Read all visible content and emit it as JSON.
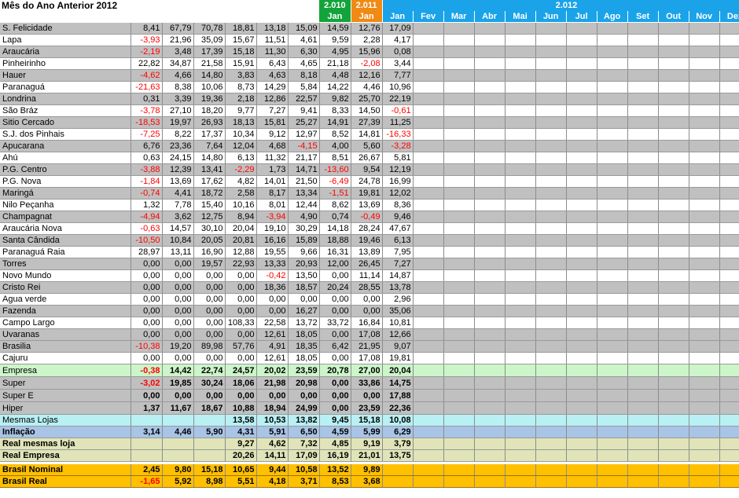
{
  "title": "Mês do Ano Anterior 2012",
  "year_headers": {
    "y2010": "2.010",
    "y2011": "2.011",
    "y2012": "2.012"
  },
  "month_headers": {
    "m2010": "Jan",
    "m2011": "Jan",
    "m2012": [
      "Jan",
      "Fev",
      "Mar",
      "Abr",
      "Mai",
      "Jun",
      "Jul",
      "Ago",
      "Set",
      "Out",
      "Nov",
      "Dez"
    ]
  },
  "rows": [
    {
      "label": "S. Felicidade",
      "style": "rg",
      "values": [
        "8,41",
        "67,79",
        "70,78",
        "18,81",
        "13,18",
        "15,09",
        "14,59",
        "12,76",
        "17,09"
      ]
    },
    {
      "label": "Lapa",
      "style": "rw",
      "values": [
        "-3,93",
        "21,96",
        "35,09",
        "15,67",
        "11,51",
        "4,61",
        "9,59",
        "2,28",
        "4,17"
      ]
    },
    {
      "label": "Araucária",
      "style": "rg",
      "values": [
        "-2,19",
        "3,48",
        "17,39",
        "15,18",
        "11,30",
        "6,30",
        "4,95",
        "15,96",
        "0,08"
      ]
    },
    {
      "label": "Pinheirinho",
      "style": "rw",
      "values": [
        "22,82",
        "34,87",
        "21,58",
        "15,91",
        "6,43",
        "4,65",
        "21,18",
        "-2,08",
        "3,44"
      ]
    },
    {
      "label": "Hauer",
      "style": "rg",
      "values": [
        "-4,62",
        "4,66",
        "14,80",
        "3,83",
        "4,63",
        "8,18",
        "4,48",
        "12,16",
        "7,77"
      ]
    },
    {
      "label": "Paranaguá",
      "style": "rw",
      "values": [
        "-21,63",
        "8,38",
        "10,06",
        "8,73",
        "14,29",
        "5,84",
        "14,22",
        "4,46",
        "10,96"
      ]
    },
    {
      "label": "Londrina",
      "style": "rg",
      "values": [
        "0,31",
        "3,39",
        "19,36",
        "2,18",
        "12,86",
        "22,57",
        "9,82",
        "25,70",
        "22,19"
      ]
    },
    {
      "label": "São Bráz",
      "style": "rw",
      "values": [
        "-3,78",
        "27,10",
        "18,20",
        "9,77",
        "7,27",
        "9,41",
        "8,33",
        "14,50",
        "-0,61"
      ]
    },
    {
      "label": "Sitio Cercado",
      "style": "rg",
      "values": [
        "-18,53",
        "19,97",
        "26,93",
        "18,13",
        "15,81",
        "25,27",
        "14,91",
        "27,39",
        "11,25"
      ]
    },
    {
      "label": "S.J. dos Pinhais",
      "style": "rw",
      "values": [
        "-7,25",
        "8,22",
        "17,37",
        "10,34",
        "9,12",
        "12,97",
        "8,52",
        "14,81",
        "-16,33"
      ]
    },
    {
      "label": "Apucarana",
      "style": "rg",
      "values": [
        "6,76",
        "23,36",
        "7,64",
        "12,04",
        "4,68",
        "-4,15",
        "4,00",
        "5,60",
        "-3,28"
      ]
    },
    {
      "label": "Ahú",
      "style": "rw",
      "values": [
        "0,63",
        "24,15",
        "14,80",
        "6,13",
        "11,32",
        "21,17",
        "8,51",
        "26,67",
        "5,81"
      ]
    },
    {
      "label": "P.G. Centro",
      "style": "rg",
      "values": [
        "-3,88",
        "12,39",
        "13,41",
        "-2,29",
        "1,73",
        "14,71",
        "-13,60",
        "9,54",
        "12,19"
      ]
    },
    {
      "label": "P.G. Nova",
      "style": "rw",
      "values": [
        "-1,84",
        "13,69",
        "17,62",
        "4,82",
        "14,01",
        "21,50",
        "-6,49",
        "24,78",
        "16,99"
      ]
    },
    {
      "label": "Maringá",
      "style": "rg",
      "values": [
        "-0,74",
        "4,41",
        "18,72",
        "2,58",
        "8,17",
        "13,34",
        "-1,51",
        "19,81",
        "12,02"
      ]
    },
    {
      "label": "Nilo Peçanha",
      "style": "rw",
      "values": [
        "1,32",
        "7,78",
        "15,40",
        "10,16",
        "8,01",
        "12,44",
        "8,62",
        "13,69",
        "8,36"
      ]
    },
    {
      "label": "Champagnat",
      "style": "rg",
      "values": [
        "-4,94",
        "3,62",
        "12,75",
        "8,94",
        "-3,94",
        "4,90",
        "0,74",
        "-0,49",
        "9,46"
      ]
    },
    {
      "label": "Araucária Nova",
      "style": "rw",
      "values": [
        "-0,63",
        "14,57",
        "30,10",
        "20,04",
        "19,10",
        "30,29",
        "14,18",
        "28,24",
        "47,67"
      ]
    },
    {
      "label": "Santa Cândida",
      "style": "rg",
      "values": [
        "-10,50",
        "10,84",
        "20,05",
        "20,81",
        "16,16",
        "15,89",
        "18,88",
        "19,46",
        "6,13"
      ]
    },
    {
      "label": "Paranaguá Raia",
      "style": "rw",
      "values": [
        "28,97",
        "13,11",
        "16,90",
        "12,88",
        "19,55",
        "9,66",
        "16,31",
        "13,89",
        "7,95"
      ]
    },
    {
      "label": "Torres",
      "style": "rg",
      "values": [
        "0,00",
        "0,00",
        "19,57",
        "22,93",
        "13,33",
        "20,93",
        "12,00",
        "26,45",
        "7,27"
      ]
    },
    {
      "label": "Novo Mundo",
      "style": "rw",
      "values": [
        "0,00",
        "0,00",
        "0,00",
        "0,00",
        "-0,42",
        "13,50",
        "0,00",
        "11,14",
        "14,87"
      ]
    },
    {
      "label": "Cristo Rei",
      "style": "rg",
      "values": [
        "0,00",
        "0,00",
        "0,00",
        "0,00",
        "18,36",
        "18,57",
        "20,24",
        "28,55",
        "13,78"
      ]
    },
    {
      "label": "Agua verde",
      "style": "rw",
      "values": [
        "0,00",
        "0,00",
        "0,00",
        "0,00",
        "0,00",
        "0,00",
        "0,00",
        "0,00",
        "2,96"
      ]
    },
    {
      "label": "Fazenda",
      "style": "rg",
      "values": [
        "0,00",
        "0,00",
        "0,00",
        "0,00",
        "0,00",
        "16,27",
        "0,00",
        "0,00",
        "35,06"
      ]
    },
    {
      "label": "Campo Largo",
      "style": "rw",
      "values": [
        "0,00",
        "0,00",
        "0,00",
        "108,33",
        "22,58",
        "13,72",
        "33,72",
        "16,84",
        "10,81"
      ]
    },
    {
      "label": "Uvaranas",
      "style": "rg",
      "values": [
        "0,00",
        "0,00",
        "0,00",
        "0,00",
        "12,61",
        "18,05",
        "0,00",
        "17,08",
        "12,66"
      ]
    },
    {
      "label": "Brasilia",
      "style": "rg",
      "values": [
        "-10,38",
        "19,20",
        "89,98",
        "57,76",
        "4,91",
        "18,35",
        "6,42",
        "21,95",
        "9,07"
      ]
    },
    {
      "label": "Cajuru",
      "style": "rw",
      "values": [
        "0,00",
        "0,00",
        "0,00",
        "0,00",
        "12,61",
        "18,05",
        "0,00",
        "17,08",
        "19,81"
      ]
    }
  ],
  "summary": [
    {
      "label": "Empresa",
      "style": "empresa",
      "values": [
        "-0,38",
        "14,42",
        "22,74",
        "24,57",
        "20,02",
        "23,59",
        "20,78",
        "27,00",
        "20,04"
      ]
    },
    {
      "label": "Super",
      "style": "grp",
      "values": [
        "-3,02",
        "19,85",
        "30,24",
        "18,06",
        "21,98",
        "20,98",
        "0,00",
        "33,86",
        "14,75"
      ]
    },
    {
      "label": "Super E",
      "style": "grp",
      "values": [
        "0,00",
        "0,00",
        "0,00",
        "0,00",
        "0,00",
        "0,00",
        "0,00",
        "0,00",
        "17,88"
      ]
    },
    {
      "label": "Hiper",
      "style": "grp",
      "values": [
        "1,37",
        "11,67",
        "18,67",
        "10,88",
        "18,94",
        "24,99",
        "0,00",
        "23,59",
        "22,36"
      ]
    },
    {
      "label": "Mesmas Lojas",
      "style": "mesmas",
      "values": [
        "",
        "",
        "",
        "13,58",
        "10,53",
        "13,82",
        "9,45",
        "15,18",
        "10,08"
      ]
    },
    {
      "label": "Inflação",
      "style": "infl",
      "values": [
        "3,14",
        "4,46",
        "5,90",
        "4,31",
        "5,91",
        "6,50",
        "4,59",
        "5,99",
        "6,29"
      ]
    },
    {
      "label": "Real mesmas loja",
      "style": "real",
      "values": [
        "",
        "",
        "",
        "9,27",
        "4,62",
        "7,32",
        "4,85",
        "9,19",
        "3,79"
      ]
    },
    {
      "label": "Real Empresa",
      "style": "real",
      "values": [
        "",
        "",
        "",
        "20,26",
        "14,11",
        "17,09",
        "16,19",
        "21,01",
        "13,75"
      ]
    }
  ],
  "brasil": [
    {
      "label": "Brasil Nominal",
      "style": "brasil",
      "values": [
        "2,45",
        "9,80",
        "15,18",
        "10,65",
        "9,44",
        "10,58",
        "13,52",
        "9,89",
        ""
      ]
    },
    {
      "label": "Brasil Real",
      "style": "brasil",
      "values": [
        "-1,65",
        "5,92",
        "8,98",
        "5,51",
        "4,18",
        "3,71",
        "8,53",
        "3,68",
        ""
      ]
    }
  ]
}
